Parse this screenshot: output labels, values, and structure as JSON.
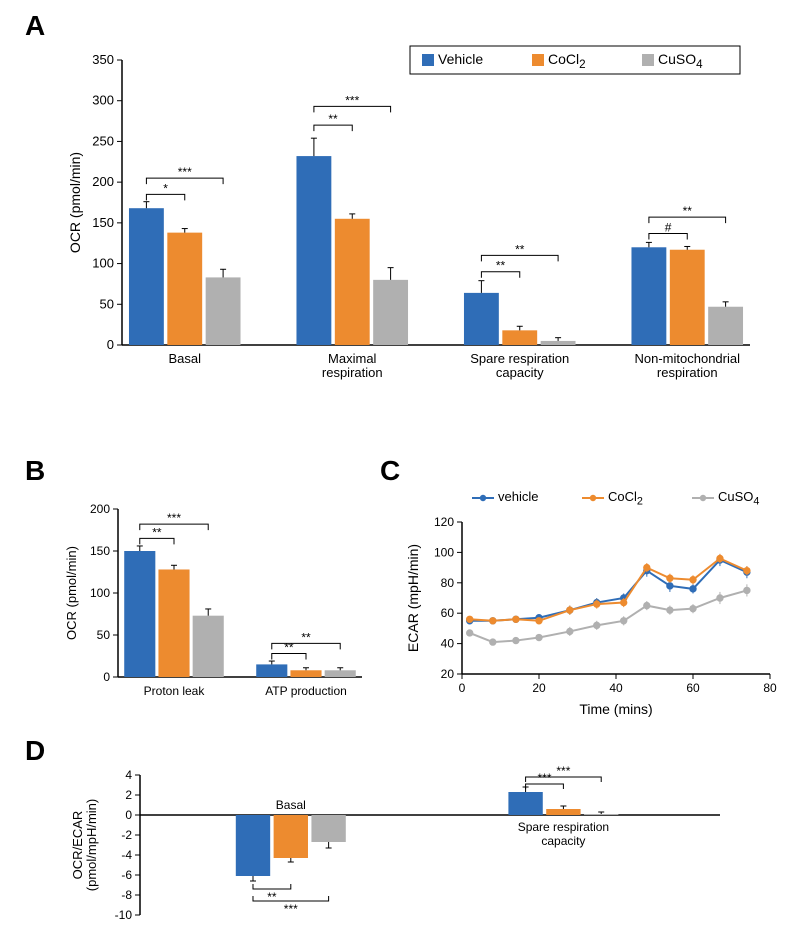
{
  "colors": {
    "vehicle": "#2f6db7",
    "cocl2": "#ed8b2f",
    "cuso4": "#b0b0b0",
    "axis": "#000000",
    "text": "#000000",
    "bg": "#ffffff"
  },
  "panel_letters": {
    "A": "A",
    "B": "B",
    "C": "C",
    "D": "D"
  },
  "panelA": {
    "type": "bar",
    "ylabel": "OCR (pmol/min)",
    "ylim": [
      0,
      350
    ],
    "ytick_step": 50,
    "bar_width": 0.7,
    "bar_gap": 0.1,
    "label_fontsize": 14,
    "tick_fontsize": 13,
    "categories": [
      "Basal",
      "Maximal\nrespiration",
      "Spare respiration\ncapacity",
      "Non-mitochondrial\nrespiration"
    ],
    "series": [
      {
        "name_html": "Vehicle",
        "color": "#2f6db7",
        "values": [
          168,
          232,
          64,
          120
        ],
        "err": [
          8,
          22,
          15,
          6
        ]
      },
      {
        "name_html": "CoCl<sub>2</sub>",
        "color": "#ed8b2f",
        "values": [
          138,
          155,
          18,
          117
        ],
        "err": [
          5,
          6,
          5,
          4
        ]
      },
      {
        "name_html": "CuSO<sub>4</sub>",
        "color": "#b0b0b0",
        "values": [
          83,
          80,
          5,
          47
        ],
        "err": [
          10,
          15,
          4,
          6
        ]
      }
    ],
    "legend": {
      "items": [
        {
          "label_html": "Vehicle",
          "swatch": "#2f6db7"
        },
        {
          "label_html": "CoCl<sub>2</sub>",
          "swatch": "#ed8b2f"
        },
        {
          "label_html": "CuSO<sub>4</sub>",
          "swatch": "#b0b0b0"
        }
      ]
    },
    "sig": [
      {
        "cat": 0,
        "pair": [
          0,
          1
        ],
        "y": 185,
        "label": "*"
      },
      {
        "cat": 0,
        "pair": [
          0,
          2
        ],
        "y": 205,
        "label": "***"
      },
      {
        "cat": 1,
        "pair": [
          0,
          1
        ],
        "y": 270,
        "label": "**"
      },
      {
        "cat": 1,
        "pair": [
          0,
          2
        ],
        "y": 293,
        "label": "***"
      },
      {
        "cat": 2,
        "pair": [
          0,
          1
        ],
        "y": 90,
        "label": "**"
      },
      {
        "cat": 2,
        "pair": [
          0,
          2
        ],
        "y": 110,
        "label": "**"
      },
      {
        "cat": 3,
        "pair": [
          0,
          1
        ],
        "y": 137,
        "label": "#"
      },
      {
        "cat": 3,
        "pair": [
          0,
          2
        ],
        "y": 157,
        "label": "**"
      }
    ]
  },
  "panelB": {
    "type": "bar",
    "ylabel": "OCR (pmol/min)",
    "ylim": [
      0,
      200
    ],
    "ytick_step": 50,
    "bar_width": 0.7,
    "bar_gap": 0.1,
    "label_fontsize": 13,
    "tick_fontsize": 12,
    "categories": [
      "Proton leak",
      "ATP production"
    ],
    "series": [
      {
        "name_html": "Vehicle",
        "color": "#2f6db7",
        "values": [
          150,
          15
        ],
        "err": [
          6,
          4
        ]
      },
      {
        "name_html": "CoCl<sub>2</sub>",
        "color": "#ed8b2f",
        "values": [
          128,
          8
        ],
        "err": [
          5,
          3
        ]
      },
      {
        "name_html": "CuSO<sub>4</sub>",
        "color": "#b0b0b0",
        "values": [
          73,
          8
        ],
        "err": [
          8,
          3
        ]
      }
    ],
    "sig": [
      {
        "cat": 0,
        "pair": [
          0,
          1
        ],
        "y": 165,
        "label": "**"
      },
      {
        "cat": 0,
        "pair": [
          0,
          2
        ],
        "y": 182,
        "label": "***"
      },
      {
        "cat": 1,
        "pair": [
          0,
          1
        ],
        "y": 28,
        "label": "**"
      },
      {
        "cat": 1,
        "pair": [
          0,
          2
        ],
        "y": 40,
        "label": "**"
      }
    ]
  },
  "panelC": {
    "type": "line-scatter",
    "xlabel": "Time (mins)",
    "ylabel": "ECAR (mpH/min)",
    "xlim": [
      0,
      80
    ],
    "xtick_step": 20,
    "ylim": [
      20,
      120
    ],
    "ytick_step": 20,
    "label_fontsize": 14,
    "tick_fontsize": 12,
    "legend": {
      "items": [
        {
          "label_html": "vehicle",
          "swatch": "#2f6db7"
        },
        {
          "label_html": "CoCl<sub>2</sub>",
          "swatch": "#ed8b2f"
        },
        {
          "label_html": "CuSO<sub>4</sub>",
          "swatch": "#b0b0b0"
        }
      ]
    },
    "x": [
      2,
      8,
      14,
      20,
      28,
      35,
      42,
      48,
      54,
      60,
      67,
      74
    ],
    "series": [
      {
        "name_html": "vehicle",
        "color": "#2f6db7",
        "marker": "circle",
        "values": [
          55,
          55,
          56,
          57,
          62,
          67,
          70,
          88,
          78,
          76,
          95,
          87
        ],
        "err": [
          2,
          2,
          2,
          2,
          3,
          3,
          3,
          4,
          4,
          3,
          4,
          4
        ]
      },
      {
        "name_html": "CoCl<sub>2</sub>",
        "color": "#ed8b2f",
        "marker": "circle",
        "values": [
          56,
          55,
          56,
          55,
          62,
          66,
          67,
          90,
          83,
          82,
          96,
          88
        ],
        "err": [
          2,
          2,
          2,
          2,
          3,
          3,
          3,
          3,
          3,
          3,
          3,
          3
        ]
      },
      {
        "name_html": "CuSO<sub>4</sub>",
        "color": "#b0b0b0",
        "marker": "circle",
        "values": [
          47,
          41,
          42,
          44,
          48,
          52,
          55,
          65,
          62,
          63,
          70,
          75
        ],
        "err": [
          2,
          2,
          2,
          2,
          3,
          3,
          3,
          3,
          3,
          3,
          4,
          4
        ]
      }
    ]
  },
  "panelD": {
    "type": "bar-bipolar",
    "ylabel": "OCR/ECAR\n(pmol/mpH/min)",
    "ylim": [
      -10,
      4
    ],
    "yticks": [
      -10,
      -8,
      -6,
      -4,
      -2,
      0,
      2,
      4
    ],
    "bar_width": 0.7,
    "bar_gap": 0.1,
    "label_fontsize": 13,
    "tick_fontsize": 12,
    "categories": [
      "Basal",
      "Spare respiration\ncapacity"
    ],
    "series": [
      {
        "name_html": "Vehicle",
        "color": "#2f6db7",
        "values": [
          -6.1,
          2.3
        ],
        "err": [
          0.5,
          0.5
        ]
      },
      {
        "name_html": "CoCl<sub>2</sub>",
        "color": "#ed8b2f",
        "values": [
          -4.3,
          0.6
        ],
        "err": [
          0.4,
          0.3
        ]
      },
      {
        "name_html": "CuSO<sub>4</sub>",
        "color": "#b0b0b0",
        "values": [
          -2.7,
          0.1
        ],
        "err": [
          0.6,
          0.2
        ]
      }
    ],
    "sig": [
      {
        "cat": 0,
        "pair": [
          0,
          1
        ],
        "y": -7.4,
        "label": "**"
      },
      {
        "cat": 0,
        "pair": [
          0,
          2
        ],
        "y": -8.6,
        "label": "***"
      },
      {
        "cat": 1,
        "pair": [
          0,
          1
        ],
        "y": 3.1,
        "label": "***"
      },
      {
        "cat": 1,
        "pair": [
          0,
          2
        ],
        "y": 3.8,
        "label": "***"
      }
    ]
  }
}
